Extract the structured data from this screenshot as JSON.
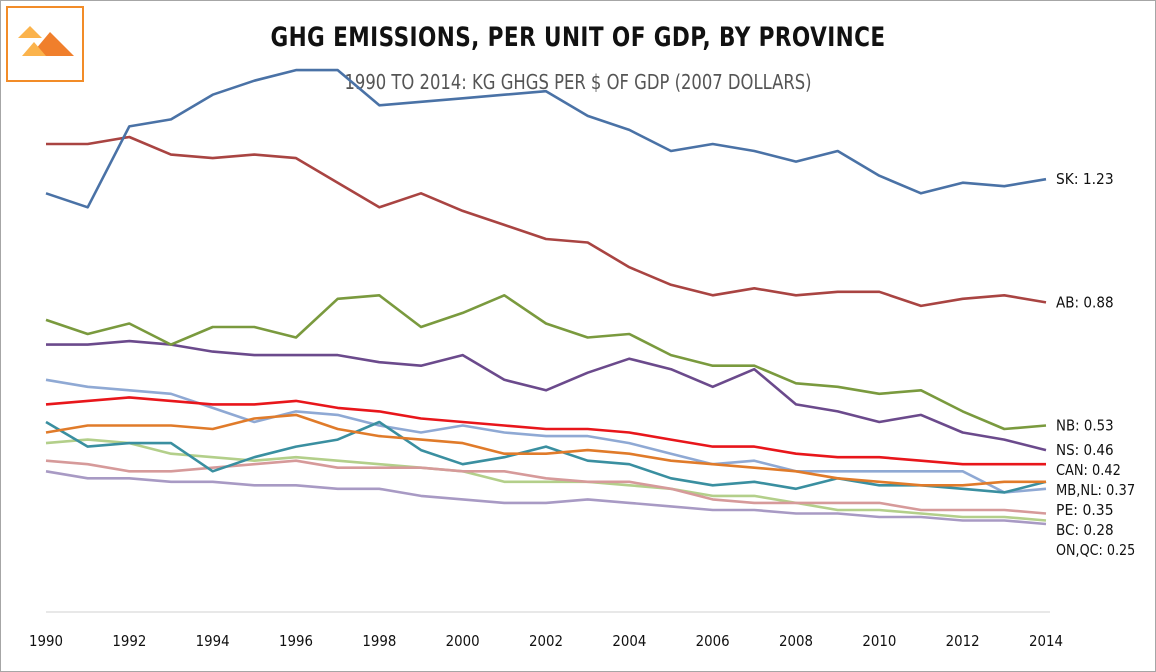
{
  "title": "GHG EMISSIONS, PER UNIT OF GDP, BY PROVINCE",
  "subtitle": "1990 TO 2014: KG GHGS PER $ OF GDP (2007 DOLLARS)",
  "chart_data": {
    "type": "line",
    "title": "GHG EMISSIONS, PER UNIT OF GDP, BY PROVINCE",
    "subtitle": "1990 TO 2014: KG GHGS PER $ OF GDP (2007 DOLLARS)",
    "xlabel": "",
    "ylabel": "",
    "xlim": [
      1990,
      2014
    ],
    "ylim": [
      0,
      1.6
    ],
    "grid": false,
    "x": [
      1990,
      1991,
      1992,
      1993,
      1994,
      1995,
      1996,
      1997,
      1998,
      1999,
      2000,
      2001,
      2002,
      2003,
      2004,
      2005,
      2006,
      2007,
      2008,
      2009,
      2010,
      2011,
      2012,
      2013,
      2014
    ],
    "x_tick_labels": [
      "1990",
      "1992",
      "1994",
      "1996",
      "1998",
      "2000",
      "2002",
      "2004",
      "2006",
      "2008",
      "2010",
      "2012",
      "2014"
    ],
    "series": [
      {
        "name": "SK",
        "end_label": "SK: 1.23",
        "color": "#4a72a6",
        "values": [
          1.19,
          1.15,
          1.38,
          1.4,
          1.47,
          1.51,
          1.54,
          1.54,
          1.44,
          1.45,
          1.46,
          1.47,
          1.48,
          1.41,
          1.37,
          1.31,
          1.33,
          1.31,
          1.28,
          1.31,
          1.24,
          1.19,
          1.22,
          1.21,
          1.23
        ]
      },
      {
        "name": "AB",
        "end_label": "AB: 0.88",
        "color": "#a94442",
        "values": [
          1.33,
          1.33,
          1.35,
          1.3,
          1.29,
          1.3,
          1.29,
          1.22,
          1.15,
          1.19,
          1.14,
          1.1,
          1.06,
          1.05,
          0.98,
          0.93,
          0.9,
          0.92,
          0.9,
          0.91,
          0.91,
          0.87,
          0.89,
          0.9,
          0.88
        ]
      },
      {
        "name": "NB",
        "end_label": "NB: 0.53",
        "color": "#7a9a3e",
        "values": [
          0.83,
          0.79,
          0.82,
          0.76,
          0.81,
          0.81,
          0.78,
          0.89,
          0.9,
          0.81,
          0.85,
          0.9,
          0.82,
          0.78,
          0.79,
          0.73,
          0.7,
          0.7,
          0.65,
          0.64,
          0.62,
          0.63,
          0.57,
          0.52,
          0.53
        ]
      },
      {
        "name": "NS",
        "end_label": "NS: 0.46",
        "color": "#6b4a8c",
        "values": [
          0.76,
          0.76,
          0.77,
          0.76,
          0.74,
          0.73,
          0.73,
          0.73,
          0.71,
          0.7,
          0.73,
          0.66,
          0.63,
          0.68,
          0.72,
          0.69,
          0.64,
          0.69,
          0.59,
          0.57,
          0.54,
          0.56,
          0.51,
          0.49,
          0.46
        ]
      },
      {
        "name": "CAN",
        "end_label": "CAN: 0.42",
        "color": "#e8161b",
        "values": [
          0.59,
          0.6,
          0.61,
          0.6,
          0.59,
          0.59,
          0.6,
          0.58,
          0.57,
          0.55,
          0.54,
          0.53,
          0.52,
          0.52,
          0.51,
          0.49,
          0.47,
          0.47,
          0.45,
          0.44,
          0.44,
          0.43,
          0.42,
          0.42,
          0.42
        ]
      },
      {
        "name": "MB,NL",
        "end_label": "MB,NL: 0.37",
        "color": "#e07b2a",
        "values": [
          0.51,
          0.53,
          0.53,
          0.53,
          0.52,
          0.55,
          0.56,
          0.52,
          0.5,
          0.49,
          0.48,
          0.45,
          0.45,
          0.46,
          0.45,
          0.43,
          0.42,
          0.41,
          0.4,
          0.38,
          0.37,
          0.36,
          0.36,
          0.37,
          0.37
        ]
      },
      {
        "name": "MB,NL",
        "end_label": "",
        "color": "#3a8fa0",
        "values": [
          0.54,
          0.47,
          0.48,
          0.48,
          0.4,
          0.44,
          0.47,
          0.49,
          0.54,
          0.46,
          0.42,
          0.44,
          0.47,
          0.43,
          0.42,
          0.38,
          0.36,
          0.37,
          0.35,
          0.38,
          0.36,
          0.36,
          0.35,
          0.34,
          0.37
        ]
      },
      {
        "name": "PE",
        "end_label": "PE: 0.35",
        "color": "#8fa9d4",
        "values": [
          0.66,
          0.64,
          0.63,
          0.62,
          0.58,
          0.54,
          0.57,
          0.56,
          0.53,
          0.51,
          0.53,
          0.51,
          0.5,
          0.5,
          0.48,
          0.45,
          0.42,
          0.43,
          0.4,
          0.4,
          0.4,
          0.4,
          0.4,
          0.34,
          0.35
        ]
      },
      {
        "name": "BC",
        "end_label": "BC: 0.28",
        "color": "#d69a9a",
        "values": [
          0.43,
          0.42,
          0.4,
          0.4,
          0.41,
          0.42,
          0.43,
          0.41,
          0.41,
          0.41,
          0.4,
          0.4,
          0.38,
          0.37,
          0.37,
          0.35,
          0.32,
          0.31,
          0.31,
          0.31,
          0.31,
          0.29,
          0.29,
          0.29,
          0.28
        ]
      },
      {
        "name": "BC",
        "end_label": "",
        "color": "#b3cf8a",
        "values": [
          0.48,
          0.49,
          0.48,
          0.45,
          0.44,
          0.43,
          0.44,
          0.43,
          0.42,
          0.41,
          0.4,
          0.37,
          0.37,
          0.37,
          0.36,
          0.35,
          0.33,
          0.33,
          0.31,
          0.29,
          0.29,
          0.28,
          0.27,
          0.27,
          0.26
        ]
      },
      {
        "name": "ON,QC",
        "end_label": "ON,QC: 0.25",
        "color": "#a89ac4",
        "values": [
          0.4,
          0.38,
          0.38,
          0.37,
          0.37,
          0.36,
          0.36,
          0.35,
          0.35,
          0.33,
          0.32,
          0.31,
          0.31,
          0.32,
          0.31,
          0.3,
          0.29,
          0.29,
          0.28,
          0.28,
          0.27,
          0.27,
          0.26,
          0.26,
          0.25
        ]
      }
    ]
  }
}
